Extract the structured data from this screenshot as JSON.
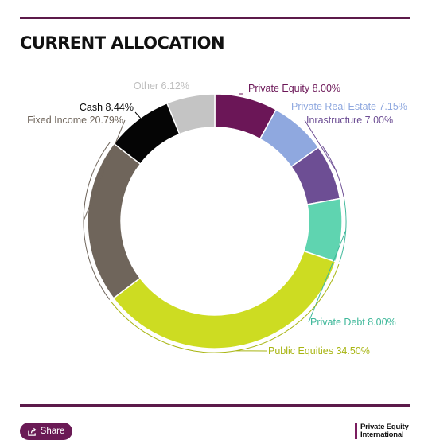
{
  "header": {
    "title": "CURRENT ALLOCATION"
  },
  "chart_data": {
    "type": "pie",
    "donut": true,
    "title": "CURRENT ALLOCATION",
    "slices": [
      {
        "name": "Private Equity",
        "value": 8.0,
        "label": "Private Equity 8.00%",
        "color": "#6b1657"
      },
      {
        "name": "Private Real Estate",
        "value": 7.15,
        "label": "Private Real Estate 7.15%",
        "color": "#8fa8df"
      },
      {
        "name": "Inrastructure",
        "value": 7.0,
        "label": "Inrastructure 7.00%",
        "color": "#6d4e94"
      },
      {
        "name": "Private Debt",
        "value": 8.0,
        "label": "Private Debt 8.00%",
        "color": "#5fd4b0"
      },
      {
        "name": "Public Equities",
        "value": 34.5,
        "label": "Public Equities 34.50%",
        "color": "#cddc22"
      },
      {
        "name": "Fixed Income",
        "value": 20.79,
        "label": "Fixed Income 20.79%",
        "color": "#6f655b"
      },
      {
        "name": "Cash",
        "value": 8.44,
        "label": "Cash 8.44%",
        "color": "#050505"
      },
      {
        "name": "Other",
        "value": 6.12,
        "label": "Other 6.12%",
        "color": "#c4c4c4"
      }
    ],
    "label_colors": {
      "Private Equity": "#6b1657",
      "Private Real Estate": "#8fa8df",
      "Inrastructure": "#6d4e94",
      "Private Debt": "#3fb89a",
      "Public Equities": "#a8b512",
      "Fixed Income": "#6f655b",
      "Cash": "#050505",
      "Other": "#bdbdbd"
    }
  },
  "footer": {
    "share_label": "Share",
    "logo_line1": "Private Equity",
    "logo_line2": "International"
  }
}
